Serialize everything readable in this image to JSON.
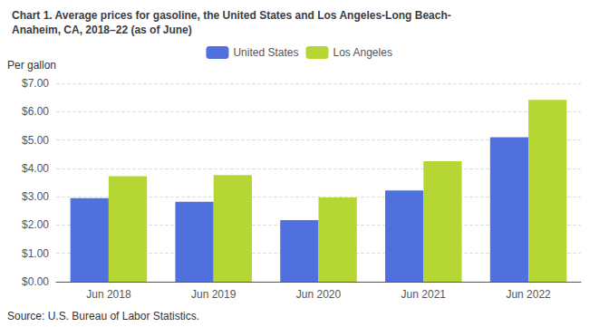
{
  "chart_data": {
    "type": "bar",
    "title": "Chart 1. Average prices for gasoline, the United States and Los Angeles-Long Beach-\nAnaheim, CA, 2018–22 (as of June)",
    "ylabel": "Per gallon",
    "annotations": [
      "Source: U.S. Bureau of Labor Statistics."
    ],
    "categories": [
      "Jun 2018",
      "Jun 2019",
      "Jun 2020",
      "Jun 2021",
      "Jun 2022"
    ],
    "series": [
      {
        "name": "United States",
        "values": [
          2.95,
          2.82,
          2.17,
          3.22,
          5.1
        ]
      },
      {
        "name": "Los Angeles",
        "values": [
          3.72,
          3.76,
          2.97,
          4.25,
          6.42
        ]
      }
    ],
    "ylim": [
      0,
      7.0
    ],
    "yticks": [
      {
        "value": 0,
        "label": "$0.00"
      },
      {
        "value": 1,
        "label": "$1.00"
      },
      {
        "value": 2,
        "label": "$2.00"
      },
      {
        "value": 3,
        "label": "$3.00"
      },
      {
        "value": 4,
        "label": "$4.00"
      },
      {
        "value": 5,
        "label": "$5.00"
      },
      {
        "value": 6,
        "label": "$6.00"
      },
      {
        "value": 7,
        "label": "$7.00"
      }
    ],
    "grid": true,
    "legend": "top"
  }
}
